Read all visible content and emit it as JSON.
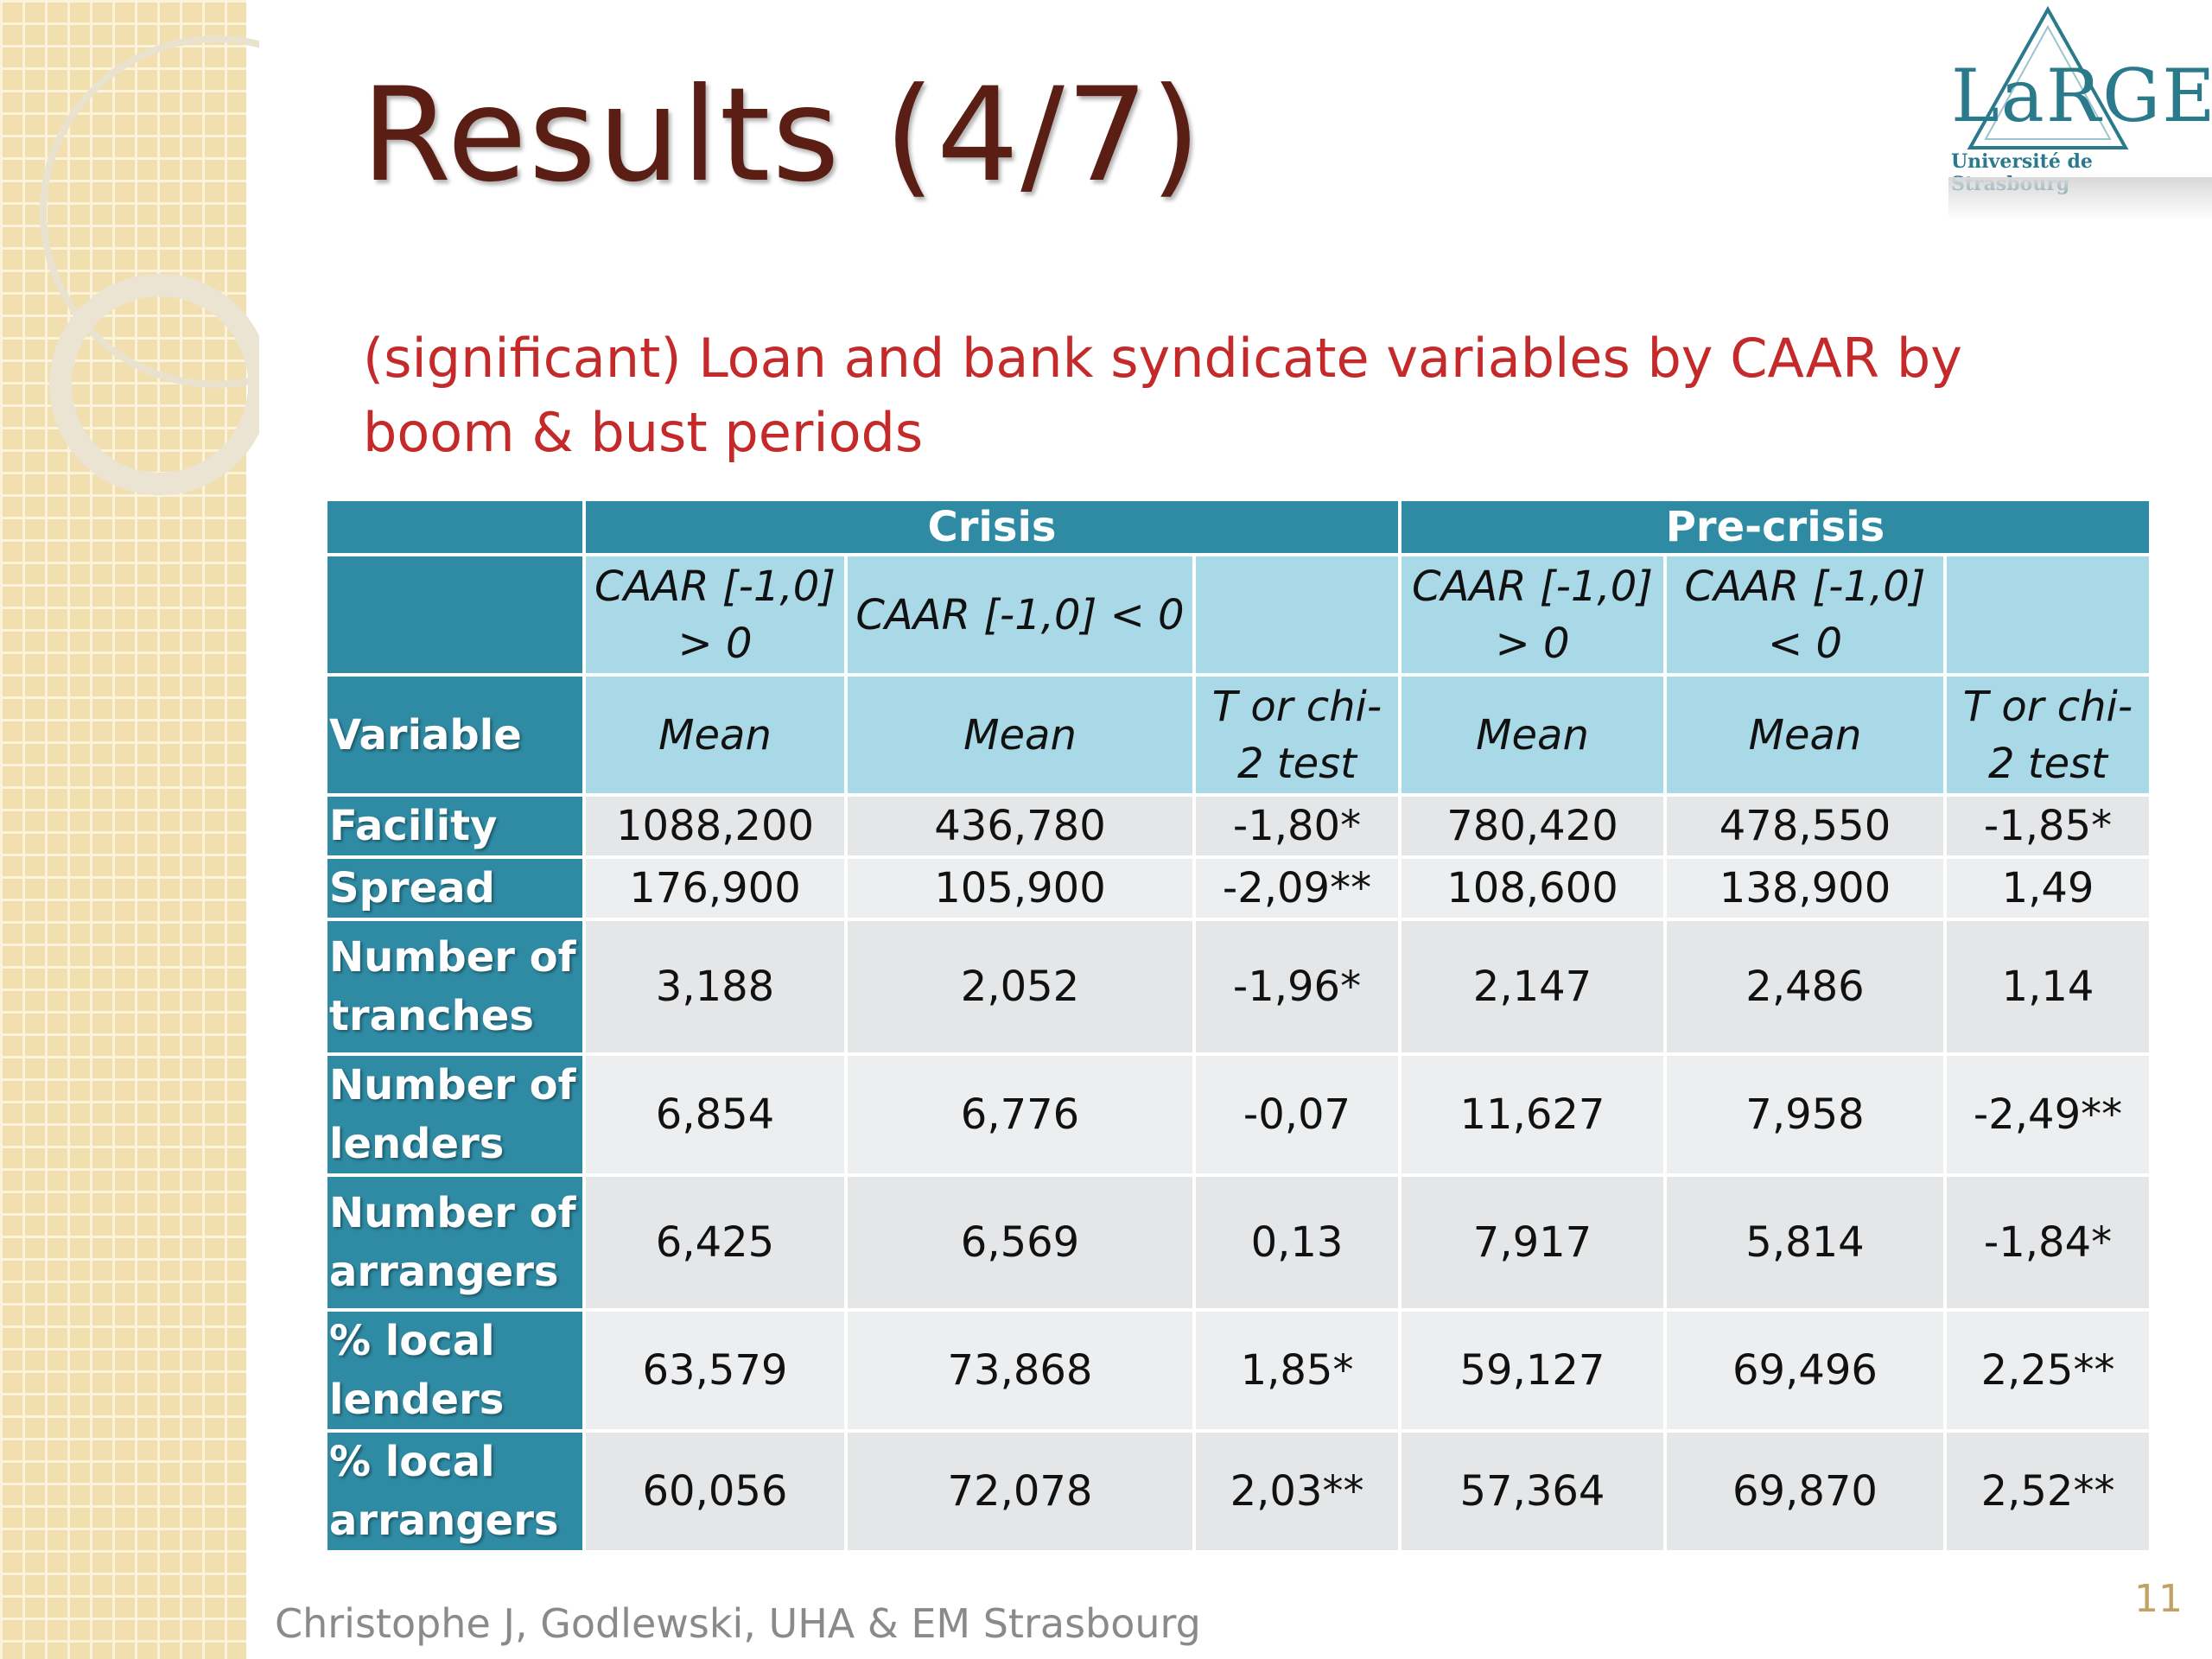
{
  "title": "Results (4/7)",
  "subtitle": "(significant) Loan and bank syndicate variables by CAAR by boom & bust periods",
  "logo": {
    "name": "LaRGE",
    "university": "Université de Strasbourg"
  },
  "table": {
    "variable_header": "Variable",
    "groups": [
      {
        "name": "Crisis",
        "caar": [
          "CAAR [-1,0] > 0",
          "CAAR [-1,0] < 0"
        ],
        "measures": [
          "Mean",
          "Mean",
          "T or chi-2 test"
        ]
      },
      {
        "name": "Pre-crisis",
        "caar": [
          "CAAR [-1,0] > 0",
          "CAAR [-1,0] < 0"
        ],
        "measures": [
          "Mean",
          "Mean",
          "T or chi-2 test"
        ]
      }
    ],
    "rows": [
      {
        "label": "Facility",
        "values": [
          "1088,200",
          "436,780",
          "-1,80*",
          "780,420",
          "478,550",
          "-1,85*"
        ]
      },
      {
        "label": "Spread",
        "values": [
          "176,900",
          "105,900",
          "-2,09**",
          "108,600",
          "138,900",
          "1,49"
        ]
      },
      {
        "label": "Number of tranches",
        "values": [
          "3,188",
          "2,052",
          "-1,96*",
          "2,147",
          "2,486",
          "1,14"
        ]
      },
      {
        "label": "Number of lenders",
        "values": [
          "6,854",
          "6,776",
          "-0,07",
          "11,627",
          "7,958",
          "-2,49**"
        ]
      },
      {
        "label": "Number of arrangers",
        "values": [
          "6,425",
          "6,569",
          "0,13",
          "7,917",
          "5,814",
          "-1,84*"
        ]
      },
      {
        "label": "% local lenders",
        "values": [
          "63,579",
          "73,868",
          "1,85*",
          "59,127",
          "69,496",
          "2,25**"
        ]
      },
      {
        "label": "% local arrangers",
        "values": [
          "60,056",
          "72,078",
          "2,03**",
          "57,364",
          "69,870",
          "2,52**"
        ]
      }
    ]
  },
  "footer": "Christophe J, Godlewski, UHA & EM Strasbourg",
  "page_number": "11"
}
